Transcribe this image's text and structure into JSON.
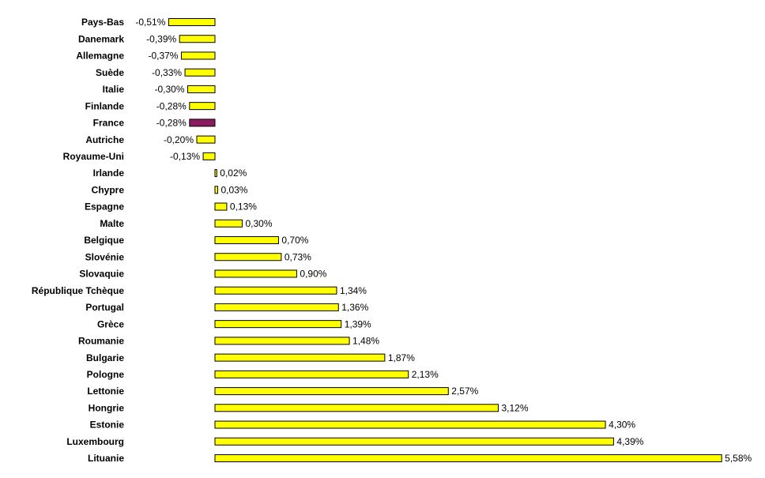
{
  "chart_data": {
    "type": "bar",
    "orientation": "horizontal",
    "categories": [
      "Pays-Bas",
      "Danemark",
      "Allemagne",
      "Suède",
      "Italie",
      "Finlande",
      "France",
      "Autriche",
      "Royaume-Uni",
      "Irlande",
      "Chypre",
      "Espagne",
      "Malte",
      "Belgique",
      "Slovénie",
      "Slovaquie",
      "République Tchèque",
      "Portugal",
      "Grèce",
      "Roumanie",
      "Bulgarie",
      "Pologne",
      "Lettonie",
      "Hongrie",
      "Estonie",
      "Luxembourg",
      "Lituanie"
    ],
    "values": [
      -0.51,
      -0.39,
      -0.37,
      -0.33,
      -0.3,
      -0.28,
      -0.28,
      -0.2,
      -0.13,
      0.02,
      0.03,
      0.13,
      0.3,
      0.7,
      0.73,
      0.9,
      1.34,
      1.36,
      1.39,
      1.48,
      1.87,
      2.13,
      2.57,
      3.12,
      4.3,
      4.39,
      5.58
    ],
    "value_labels": [
      "-0,51%",
      "-0,39%",
      "-0,37%",
      "-0,33%",
      "-0,30%",
      "-0,28%",
      "-0,28%",
      "-0,20%",
      "-0,13%",
      "0,02%",
      "0,03%",
      "0,13%",
      "0,30%",
      "0,70%",
      "0,73%",
      "0,90%",
      "1,34%",
      "1,36%",
      "1,39%",
      "1,48%",
      "1,87%",
      "2,13%",
      "2,57%",
      "3,12%",
      "4,30%",
      "4,39%",
      "5,58%"
    ],
    "colors": [
      "#ffff00",
      "#ffff00",
      "#ffff00",
      "#ffff00",
      "#ffff00",
      "#ffff00",
      "#8b1a5e",
      "#ffff00",
      "#ffff00",
      "#ffff00",
      "#ffff00",
      "#ffff00",
      "#ffff00",
      "#ffff00",
      "#ffff00",
      "#ffff00",
      "#ffff00",
      "#ffff00",
      "#ffff00",
      "#ffff00",
      "#ffff00",
      "#ffff00",
      "#ffff00",
      "#ffff00",
      "#ffff00",
      "#ffff00",
      "#ffff00"
    ]
  }
}
